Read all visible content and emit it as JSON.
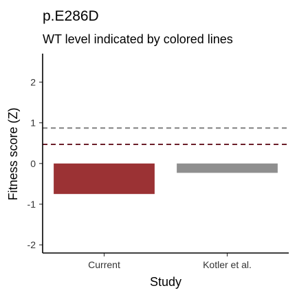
{
  "chart_data": {
    "type": "bar",
    "title": "p.E286D",
    "subtitle": "WT level indicated by colored lines",
    "xlabel": "Study",
    "ylabel": "Fitness score (Z)",
    "categories": [
      "Current",
      "Kotler et al."
    ],
    "values": [
      -0.75,
      -0.23
    ],
    "bar_colors": [
      "#9b3234",
      "#8f8f8f"
    ],
    "ylim": [
      -2.2,
      2.7
    ],
    "yticks": [
      -2,
      -1,
      0,
      1,
      2
    ],
    "reference_lines": [
      {
        "value": 0.87,
        "color": "#808080"
      },
      {
        "value": 0.47,
        "color": "#6b1f2a"
      }
    ],
    "grid": false,
    "legend": "none"
  }
}
